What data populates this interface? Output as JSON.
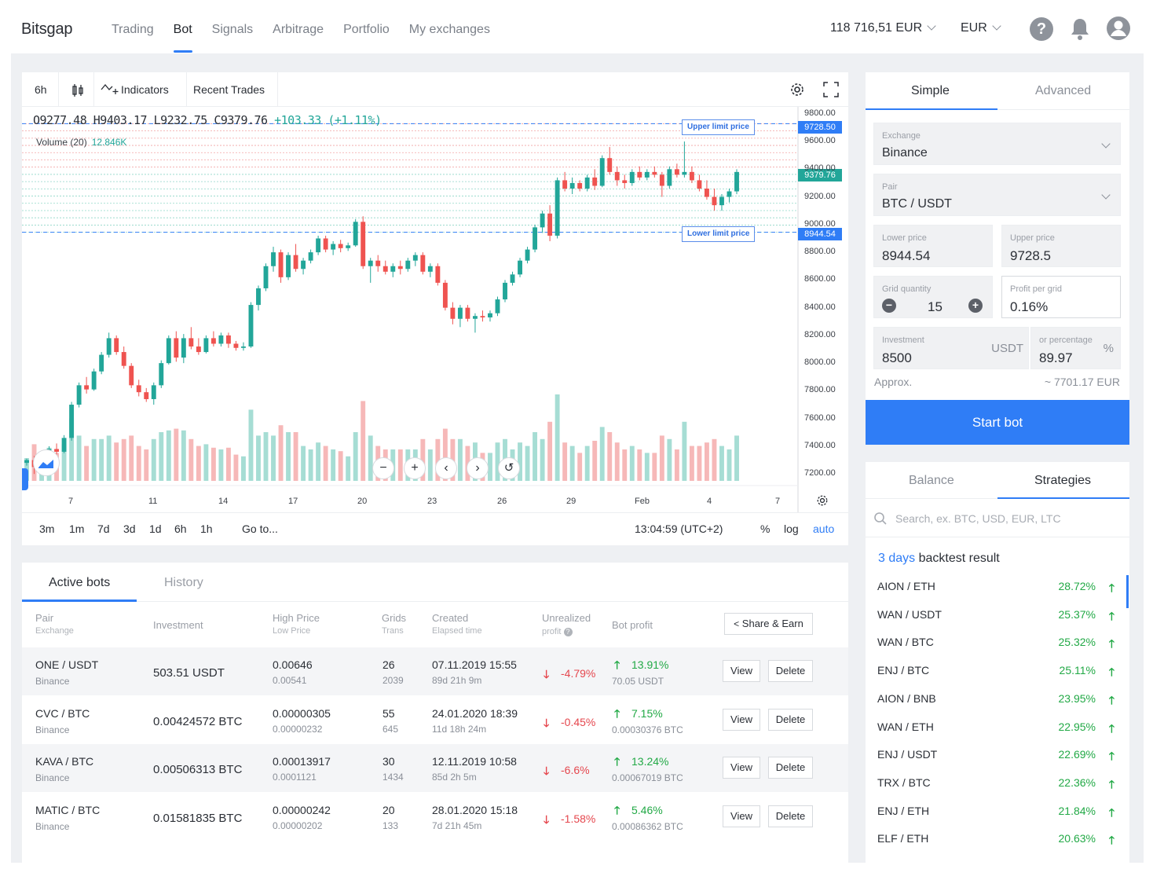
{
  "header": {
    "logo": "Bitsgap",
    "nav": [
      "Trading",
      "Bot",
      "Signals",
      "Arbitrage",
      "Portfolio",
      "My exchanges"
    ],
    "active_nav": "Bot",
    "balance": "118 716,51 EUR",
    "currency": "EUR"
  },
  "chart": {
    "toolbar": {
      "interval": "6h",
      "indicators": "Indicators",
      "recent_trades": "Recent Trades"
    },
    "ohlc": {
      "o": "O9277.48",
      "h": "H9403.17",
      "l": "L9232.75",
      "c": "C9379.76",
      "chg": "+103.33 (+1.11%)"
    },
    "volume_label": "Volume (20)",
    "volume_value": "12.846K",
    "upper_limit_label": "Upper limit price",
    "lower_limit_label": "Lower limit price",
    "price_tags": {
      "upper": "9728.50",
      "current": "9379.76",
      "lower": "8944.54"
    },
    "price_axis": [
      "9800.00",
      "9600.00",
      "9400.00",
      "9200.00",
      "9000.00",
      "8800.00",
      "8600.00",
      "8400.00",
      "8200.00",
      "8000.00",
      "7800.00",
      "7600.00",
      "7400.00",
      "7200.00"
    ],
    "date_axis": [
      "7",
      "11",
      "14",
      "17",
      "20",
      "23",
      "26",
      "29",
      "Feb",
      "4",
      "7"
    ],
    "timeframes": [
      "3m",
      "1m",
      "7d",
      "3d",
      "1d",
      "6h",
      "1h"
    ],
    "goto": "Go to...",
    "clock": "13:04:59 (UTC+2)",
    "scale_opts": [
      "%",
      "log",
      "auto"
    ]
  },
  "chart_data": {
    "type": "candlestick",
    "ylim": [
      7150,
      9850
    ],
    "upper_limit": 9728.5,
    "lower_limit": 8944.54,
    "current": 9379.76,
    "candles": [
      [
        7280,
        7310,
        7260,
        7300
      ],
      [
        7300,
        7330,
        7200,
        7250
      ],
      [
        7250,
        7310,
        7230,
        7300
      ],
      [
        7300,
        7400,
        7290,
        7380
      ],
      [
        7380,
        7420,
        7340,
        7360
      ],
      [
        7360,
        7480,
        7350,
        7460
      ],
      [
        7460,
        7720,
        7440,
        7700
      ],
      [
        7700,
        7860,
        7680,
        7840
      ],
      [
        7840,
        7900,
        7780,
        7810
      ],
      [
        7810,
        7960,
        7800,
        7940
      ],
      [
        7940,
        8080,
        7920,
        8060
      ],
      [
        8060,
        8220,
        8040,
        8180
      ],
      [
        8180,
        8200,
        8060,
        8080
      ],
      [
        8080,
        8120,
        7960,
        7980
      ],
      [
        7980,
        8000,
        7820,
        7840
      ],
      [
        7840,
        7880,
        7760,
        7790
      ],
      [
        7790,
        7820,
        7720,
        7740
      ],
      [
        7740,
        7860,
        7700,
        7840
      ],
      [
        7840,
        8020,
        7820,
        8000
      ],
      [
        8000,
        8200,
        7990,
        8180
      ],
      [
        8180,
        8230,
        8010,
        8040
      ],
      [
        8040,
        8210,
        8000,
        8180
      ],
      [
        8180,
        8260,
        8100,
        8120
      ],
      [
        8120,
        8180,
        8060,
        8080
      ],
      [
        8080,
        8200,
        8070,
        8180
      ],
      [
        8180,
        8230,
        8120,
        8140
      ],
      [
        8140,
        8220,
        8120,
        8200
      ],
      [
        8200,
        8220,
        8110,
        8140
      ],
      [
        8140,
        8160,
        8090,
        8110
      ],
      [
        8110,
        8150,
        8090,
        8120
      ],
      [
        8120,
        8440,
        8110,
        8420
      ],
      [
        8420,
        8560,
        8380,
        8540
      ],
      [
        8540,
        8720,
        8520,
        8700
      ],
      [
        8700,
        8840,
        8660,
        8800
      ],
      [
        8800,
        8820,
        8580,
        8620
      ],
      [
        8620,
        8800,
        8600,
        8780
      ],
      [
        8780,
        8860,
        8660,
        8680
      ],
      [
        8680,
        8760,
        8640,
        8740
      ],
      [
        8740,
        8820,
        8720,
        8800
      ],
      [
        8800,
        8920,
        8780,
        8900
      ],
      [
        8900,
        8920,
        8800,
        8820
      ],
      [
        8820,
        8880,
        8780,
        8860
      ],
      [
        8860,
        8890,
        8800,
        8830
      ],
      [
        8830,
        8870,
        8810,
        8850
      ],
      [
        8850,
        9040,
        8840,
        9020
      ],
      [
        9020,
        9060,
        8680,
        8700
      ],
      [
        8700,
        8760,
        8580,
        8740
      ],
      [
        8740,
        8780,
        8660,
        8700
      ],
      [
        8700,
        8740,
        8640,
        8660
      ],
      [
        8660,
        8720,
        8620,
        8700
      ],
      [
        8700,
        8740,
        8640,
        8680
      ],
      [
        8680,
        8760,
        8660,
        8740
      ],
      [
        8740,
        8800,
        8700,
        8780
      ],
      [
        8780,
        8800,
        8640,
        8660
      ],
      [
        8660,
        8720,
        8620,
        8700
      ],
      [
        8700,
        8720,
        8560,
        8580
      ],
      [
        8580,
        8600,
        8380,
        8400
      ],
      [
        8400,
        8440,
        8280,
        8320
      ],
      [
        8320,
        8420,
        8260,
        8400
      ],
      [
        8400,
        8420,
        8300,
        8320
      ],
      [
        8320,
        8360,
        8220,
        8340
      ],
      [
        8340,
        8380,
        8300,
        8330
      ],
      [
        8330,
        8380,
        8300,
        8360
      ],
      [
        8360,
        8480,
        8340,
        8460
      ],
      [
        8460,
        8600,
        8440,
        8580
      ],
      [
        8580,
        8660,
        8560,
        8640
      ],
      [
        8640,
        8760,
        8620,
        8740
      ],
      [
        8740,
        8840,
        8720,
        8820
      ],
      [
        8820,
        9000,
        8800,
        8980
      ],
      [
        8980,
        9100,
        8940,
        9080
      ],
      [
        9080,
        9140,
        8880,
        8920
      ],
      [
        8920,
        9340,
        8900,
        9320
      ],
      [
        9320,
        9380,
        9240,
        9260
      ],
      [
        9260,
        9340,
        9220,
        9300
      ],
      [
        9300,
        9320,
        9240,
        9260
      ],
      [
        9260,
        9360,
        9240,
        9340
      ],
      [
        9340,
        9400,
        9250,
        9280
      ],
      [
        9280,
        9500,
        9270,
        9480
      ],
      [
        9480,
        9560,
        9360,
        9380
      ],
      [
        9380,
        9420,
        9280,
        9320
      ],
      [
        9320,
        9360,
        9260,
        9300
      ],
      [
        9300,
        9400,
        9280,
        9380
      ],
      [
        9380,
        9420,
        9320,
        9340
      ],
      [
        9340,
        9400,
        9320,
        9380
      ],
      [
        9380,
        9420,
        9340,
        9360
      ],
      [
        9360,
        9380,
        9200,
        9280
      ],
      [
        9280,
        9420,
        9260,
        9400
      ],
      [
        9400,
        9440,
        9340,
        9360
      ],
      [
        9360,
        9600,
        9340,
        9380
      ],
      [
        9380,
        9420,
        9300,
        9320
      ],
      [
        9320,
        9360,
        9240,
        9260
      ],
      [
        9260,
        9320,
        9180,
        9200
      ],
      [
        9200,
        9260,
        9100,
        9140
      ],
      [
        9140,
        9220,
        9100,
        9200
      ],
      [
        9200,
        9260,
        9160,
        9240
      ],
      [
        9240,
        9400,
        9220,
        9380
      ]
    ]
  },
  "settings": {
    "tabs": [
      "Simple",
      "Advanced"
    ],
    "exchange": {
      "label": "Exchange",
      "value": "Binance"
    },
    "pair": {
      "label": "Pair",
      "value": "BTC / USDT"
    },
    "lower_price": {
      "label": "Lower price",
      "value": "8944.54"
    },
    "upper_price": {
      "label": "Upper price",
      "value": "9728.5"
    },
    "grid_qty": {
      "label": "Grid quantity",
      "value": "15"
    },
    "profit_grid": {
      "label": "Profit per grid",
      "value": "0.16%"
    },
    "investment": {
      "label": "Investment",
      "value": "8500",
      "unit": "USDT"
    },
    "percentage": {
      "label": "or percentage",
      "value": "89.97",
      "unit": "%"
    },
    "approx_label": "Approx.",
    "approx_value": "~ 7701.17 EUR",
    "start_button": "Start bot"
  },
  "strategies": {
    "tabs": [
      "Balance",
      "Strategies"
    ],
    "search_placeholder": "Search, ex. BTC, USD, EUR, LTC",
    "backtest_days": "3 days",
    "backtest_label": "backtest result",
    "rows": [
      {
        "pair": "AION / ETH",
        "pct": "28.72%"
      },
      {
        "pair": "WAN / USDT",
        "pct": "25.37%"
      },
      {
        "pair": "WAN / BTC",
        "pct": "25.32%"
      },
      {
        "pair": "ENJ / BTC",
        "pct": "25.11%"
      },
      {
        "pair": "AION / BNB",
        "pct": "23.95%"
      },
      {
        "pair": "WAN / ETH",
        "pct": "22.95%"
      },
      {
        "pair": "ENJ / USDT",
        "pct": "22.69%"
      },
      {
        "pair": "TRX / BTC",
        "pct": "22.36%"
      },
      {
        "pair": "ENJ / ETH",
        "pct": "21.84%"
      },
      {
        "pair": "ELF / ETH",
        "pct": "20.63%"
      }
    ]
  },
  "bots": {
    "tabs": [
      "Active bots",
      "History"
    ],
    "headers": {
      "pair": "Pair",
      "exchange": "Exchange",
      "investment": "Investment",
      "high": "High Price",
      "low": "Low Price",
      "grids": "Grids",
      "trans": "Trans",
      "created": "Created",
      "elapsed": "Elapsed time",
      "unrealized": "Unrealized",
      "profit": "profit",
      "bot_profit": "Bot profit",
      "share": "Share & Earn"
    },
    "view_label": "View",
    "delete_label": "Delete",
    "rows": [
      {
        "pair": "ONE / USDT",
        "exchange": "Binance",
        "investment": "503.51 USDT",
        "high": "0.00646",
        "low": "0.00541",
        "grids": "26",
        "trans": "2039",
        "created": "07.11.2019 15:55",
        "elapsed": "89d 21h 9m",
        "unrealized": "-4.79%",
        "profit": "13.91%",
        "profit_abs": "70.05 USDT"
      },
      {
        "pair": "CVC / BTC",
        "exchange": "Binance",
        "investment": "0.00424572 BTC",
        "high": "0.00000305",
        "low": "0.00000232",
        "grids": "55",
        "trans": "645",
        "created": "24.01.2020 18:39",
        "elapsed": "11d 18h 24m",
        "unrealized": "-0.45%",
        "profit": "7.15%",
        "profit_abs": "0.00030376 BTC"
      },
      {
        "pair": "KAVA / BTC",
        "exchange": "Binance",
        "investment": "0.00506313 BTC",
        "high": "0.00013917",
        "low": "0.0001121",
        "grids": "30",
        "trans": "1434",
        "created": "12.11.2019 10:58",
        "elapsed": "85d 2h 5m",
        "unrealized": "-6.6%",
        "profit": "13.24%",
        "profit_abs": "0.00067019 BTC"
      },
      {
        "pair": "MATIC / BTC",
        "exchange": "Binance",
        "investment": "0.01581835 BTC",
        "high": "0.00000242",
        "low": "0.00000202",
        "grids": "20",
        "trans": "133",
        "created": "28.01.2020 15:18",
        "elapsed": "7d 21h 45m",
        "unrealized": "-1.58%",
        "profit": "5.46%",
        "profit_abs": "0.00086362 BTC"
      }
    ]
  },
  "colors": {
    "accent": "#2f7df6",
    "up": "#22a699",
    "down": "#ef5350",
    "profit": "#22a946",
    "loss": "#e5474e"
  }
}
